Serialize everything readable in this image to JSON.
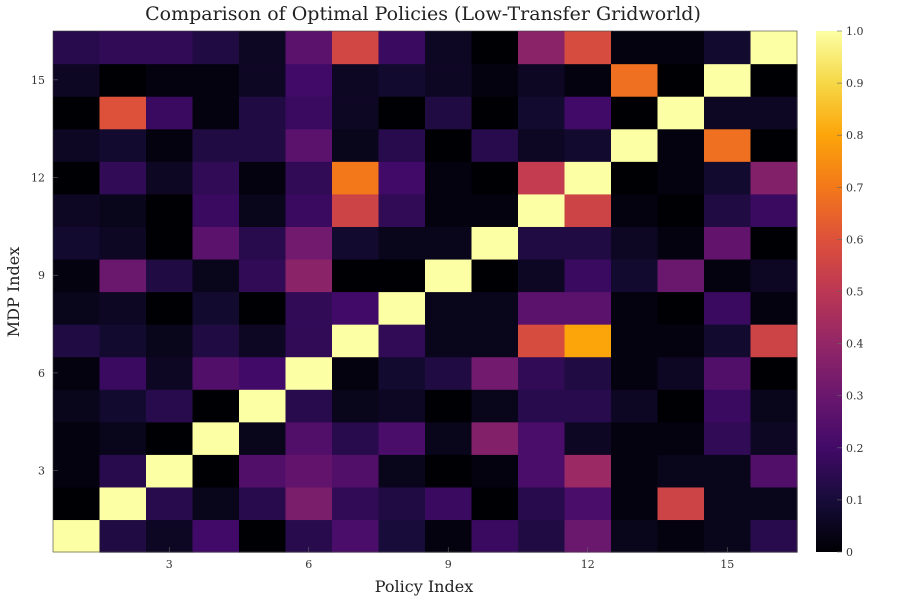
{
  "chart_data": {
    "type": "heatmap",
    "title": "Comparison of Optimal Policies (Low-Transfer Gridworld)",
    "xlabel": "Policy Index",
    "ylabel": "MDP Index",
    "x_range": [
      1,
      16
    ],
    "y_range": [
      1,
      16
    ],
    "x_ticks": [
      3,
      6,
      9,
      12,
      15
    ],
    "y_ticks": [
      3,
      6,
      9,
      12,
      15
    ],
    "colorbar": {
      "colormap": "inferno",
      "range": [
        0,
        1
      ],
      "ticks": [
        0,
        0.1,
        0.2,
        0.3,
        0.4,
        0.5,
        0.6,
        0.7,
        0.8,
        0.9,
        1.0
      ]
    },
    "grid": false,
    "z": [
      [
        1.0,
        0.12,
        0.06,
        0.2,
        0.0,
        0.14,
        0.22,
        0.1,
        0.02,
        0.18,
        0.12,
        0.3,
        0.04,
        0.02,
        0.04,
        0.14
      ],
      [
        0.0,
        1.0,
        0.14,
        0.04,
        0.14,
        0.34,
        0.16,
        0.12,
        0.18,
        0.0,
        0.14,
        0.22,
        0.02,
        0.55,
        0.04,
        0.04
      ],
      [
        0.02,
        0.14,
        1.0,
        0.0,
        0.24,
        0.28,
        0.24,
        0.04,
        0.0,
        0.02,
        0.22,
        0.42,
        0.02,
        0.04,
        0.04,
        0.24
      ],
      [
        0.02,
        0.04,
        0.0,
        1.0,
        0.04,
        0.24,
        0.14,
        0.22,
        0.04,
        0.36,
        0.22,
        0.06,
        0.02,
        0.02,
        0.16,
        0.06
      ],
      [
        0.04,
        0.08,
        0.14,
        0.0,
        1.0,
        0.14,
        0.04,
        0.06,
        0.0,
        0.04,
        0.14,
        0.14,
        0.06,
        0.0,
        0.18,
        0.04
      ],
      [
        0.02,
        0.18,
        0.06,
        0.24,
        0.2,
        1.0,
        0.02,
        0.08,
        0.12,
        0.32,
        0.16,
        0.12,
        0.02,
        0.06,
        0.24,
        0.0
      ],
      [
        0.12,
        0.08,
        0.04,
        0.12,
        0.06,
        0.16,
        1.0,
        0.16,
        0.04,
        0.04,
        0.58,
        0.8,
        0.02,
        0.02,
        0.08,
        0.55
      ],
      [
        0.04,
        0.06,
        0.0,
        0.08,
        0.0,
        0.16,
        0.2,
        1.0,
        0.04,
        0.04,
        0.26,
        0.26,
        0.02,
        0.0,
        0.18,
        0.02
      ],
      [
        0.02,
        0.3,
        0.12,
        0.04,
        0.16,
        0.38,
        0.0,
        0.0,
        1.0,
        0.0,
        0.06,
        0.18,
        0.08,
        0.3,
        0.02,
        0.06
      ],
      [
        0.08,
        0.06,
        0.0,
        0.26,
        0.14,
        0.32,
        0.08,
        0.04,
        0.04,
        1.0,
        0.12,
        0.12,
        0.06,
        0.02,
        0.28,
        0.0
      ],
      [
        0.06,
        0.04,
        0.0,
        0.18,
        0.04,
        0.18,
        0.55,
        0.16,
        0.02,
        0.02,
        1.0,
        0.55,
        0.02,
        0.0,
        0.12,
        0.18
      ],
      [
        0.0,
        0.16,
        0.06,
        0.16,
        0.02,
        0.16,
        0.7,
        0.2,
        0.02,
        0.0,
        0.52,
        1.0,
        0.0,
        0.02,
        0.08,
        0.36
      ],
      [
        0.06,
        0.08,
        0.02,
        0.12,
        0.12,
        0.26,
        0.04,
        0.14,
        0.0,
        0.14,
        0.06,
        0.08,
        1.0,
        0.02,
        0.68,
        0.0
      ],
      [
        0.0,
        0.6,
        0.18,
        0.02,
        0.12,
        0.18,
        0.06,
        0.0,
        0.12,
        0.0,
        0.08,
        0.2,
        0.0,
        1.0,
        0.06,
        0.06
      ],
      [
        0.06,
        0.0,
        0.02,
        0.02,
        0.06,
        0.2,
        0.06,
        0.08,
        0.06,
        0.02,
        0.06,
        0.02,
        0.68,
        0.0,
        1.0,
        0.0
      ],
      [
        0.14,
        0.16,
        0.16,
        0.12,
        0.06,
        0.26,
        0.56,
        0.18,
        0.06,
        0.0,
        0.38,
        0.58,
        0.02,
        0.02,
        0.08,
        1.0
      ]
    ]
  }
}
